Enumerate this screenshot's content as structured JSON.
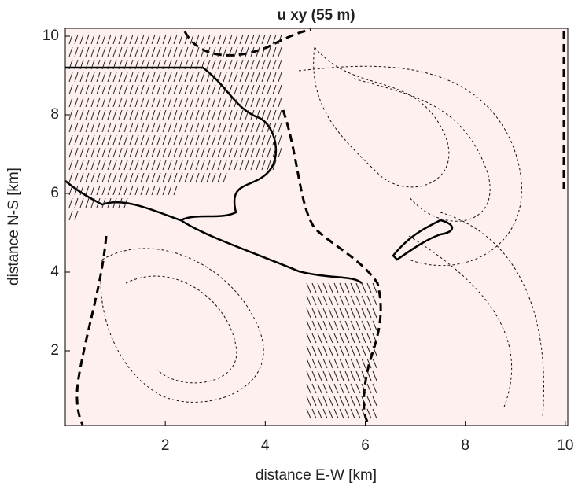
{
  "chart_data": {
    "type": "quiver",
    "title": "u xy (55 m)",
    "x_label": "distance E-W [km]",
    "y_label": "distance N-S [km]",
    "xlim": [
      0,
      10.05
    ],
    "ylim": [
      0.1,
      10.2
    ],
    "xticks": [
      2,
      4,
      6,
      8,
      10
    ],
    "yticks": [
      2,
      4,
      6,
      8,
      10
    ],
    "background": "#fdf0ef"
  }
}
